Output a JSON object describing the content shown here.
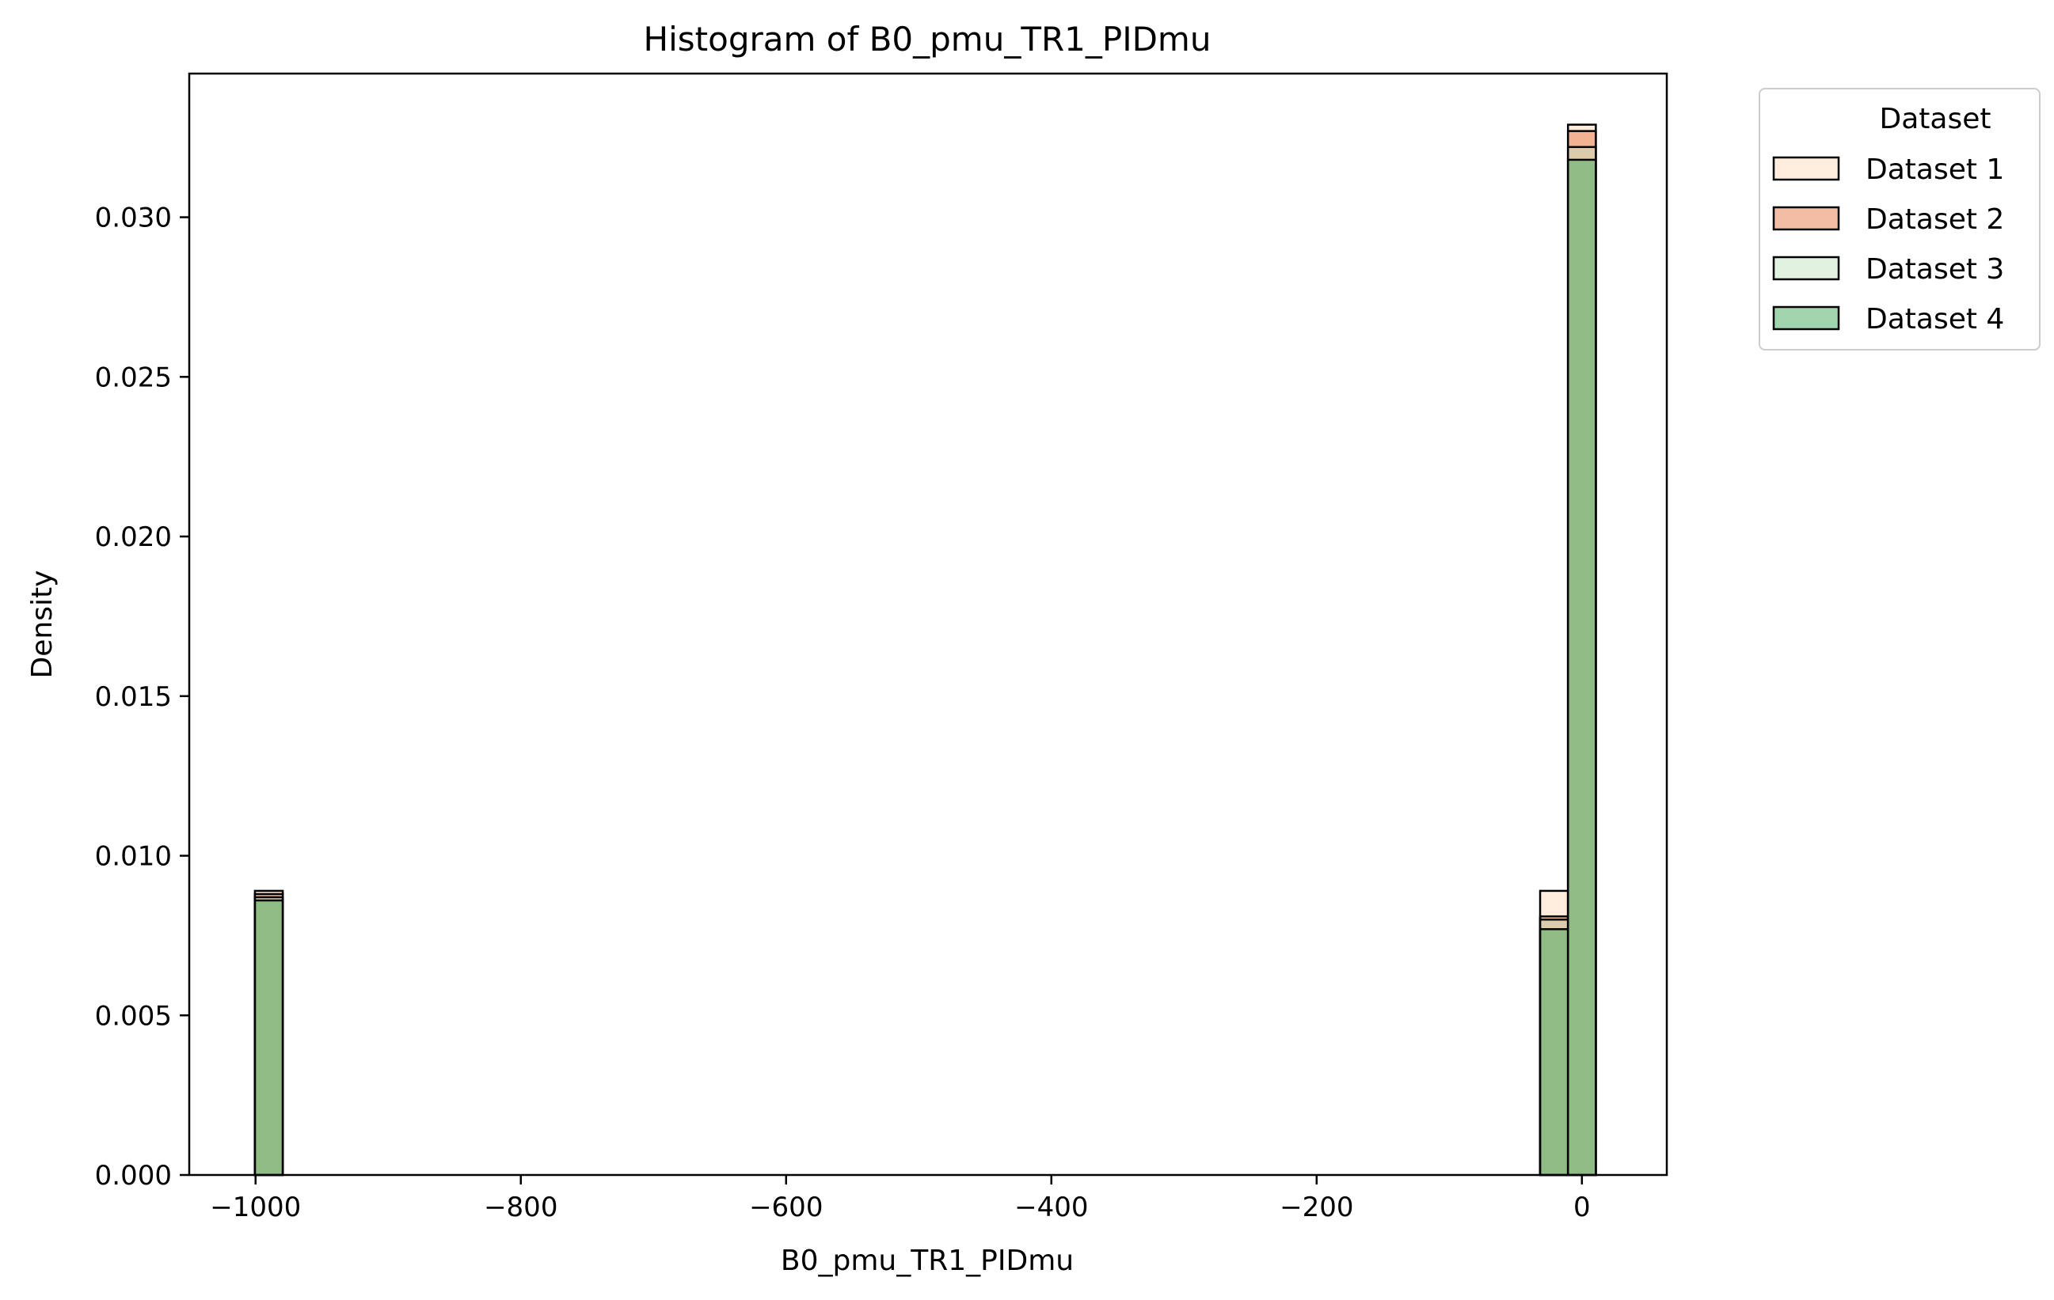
{
  "chart_data": {
    "type": "bar",
    "subtype": "histogram-overlay",
    "title": "Histogram of B0_pmu_TR1_PIDmu",
    "xlabel": "B0_pmu_TR1_PIDmu",
    "ylabel": "Density",
    "xlim": [
      -1050,
      64
    ],
    "ylim": [
      0,
      0.0345
    ],
    "xticks": [
      -1000,
      -800,
      -600,
      -400,
      -200,
      0
    ],
    "xtick_labels": [
      "−1000",
      "−800",
      "−600",
      "−400",
      "−200",
      "0"
    ],
    "yticks": [
      0.0,
      0.005,
      0.01,
      0.015,
      0.02,
      0.025,
      0.03
    ],
    "ytick_labels": [
      "0.000",
      "0.005",
      "0.010",
      "0.015",
      "0.020",
      "0.025",
      "0.030"
    ],
    "bins": [
      {
        "x0": -1000.5,
        "x1": -979.5
      },
      {
        "x0": -31.5,
        "x1": -10.5
      },
      {
        "x0": -10.5,
        "x1": 10.5
      }
    ],
    "series": [
      {
        "name": "Dataset 1",
        "color": "#fdd9b9",
        "alpha": 0.5,
        "values": [
          0.0089,
          0.0089,
          0.0329
        ]
      },
      {
        "name": "Dataset 2",
        "color": "#e8794a",
        "alpha": 0.5,
        "values": [
          0.0088,
          0.0081,
          0.0327
        ]
      },
      {
        "name": "Dataset 3",
        "color": "#c5e6c3",
        "alpha": 0.5,
        "values": [
          0.0087,
          0.008,
          0.0322
        ]
      },
      {
        "name": "Dataset 4",
        "color": "#41ab5d",
        "alpha": 0.5,
        "values": [
          0.0086,
          0.0077,
          0.0318
        ]
      }
    ],
    "legend": {
      "title": "Dataset",
      "placement": "outside-top-right"
    },
    "grid": false
  }
}
